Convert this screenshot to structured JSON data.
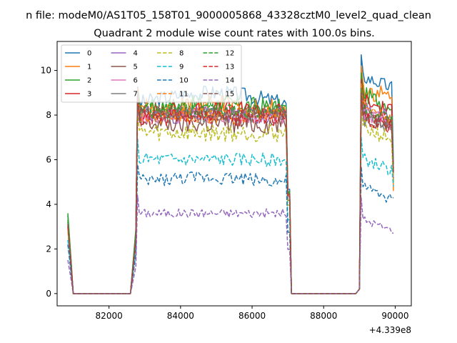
{
  "chart_data": {
    "type": "line",
    "suptitle": "n file: modeM0/AS1T05_158T01_9000005868_43328cztM0_level2_quad_clean",
    "title": "Quadrant 2 module wise count rates with 100.0s bins.",
    "x_offset_label": "+4.339e8",
    "xlim": [
      80550,
      90450
    ],
    "ylim": [
      -0.55,
      11.3
    ],
    "xticks": [
      82000,
      84000,
      86000,
      88000,
      90000
    ],
    "yticks": [
      0,
      2,
      4,
      6,
      8,
      10
    ],
    "legend_position": "upper left",
    "legend_columns": 4,
    "grid": false,
    "gti_segments": [
      [
        80850,
        82650
      ],
      [
        82750,
        87050
      ],
      [
        87100,
        88950
      ],
      [
        89000,
        89950
      ]
    ],
    "series": [
      {
        "name": "0",
        "color": "#1f77b4",
        "dash": "solid",
        "level": 8.5,
        "first": 3.5,
        "noise": 0.35,
        "drift": 0.5,
        "peak2": 10.7,
        "end": 5.8
      },
      {
        "name": "1",
        "color": "#ff7f0e",
        "dash": "solid",
        "level": 8.2,
        "first": 3.3,
        "noise": 0.5,
        "drift": 0.2,
        "peak2": 10.2,
        "end": 4.6
      },
      {
        "name": "2",
        "color": "#2ca02c",
        "dash": "solid",
        "level": 8.3,
        "first": 3.6,
        "noise": 0.4,
        "drift": 0.2,
        "peak2": 9.9,
        "end": 5.0
      },
      {
        "name": "3",
        "color": "#d62728",
        "dash": "solid",
        "level": 8.1,
        "first": 3.2,
        "noise": 0.45,
        "drift": 0.1,
        "peak2": 9.6,
        "end": 5.1
      },
      {
        "name": "4",
        "color": "#9467bd",
        "dash": "solid",
        "level": 8.0,
        "first": 3.0,
        "noise": 0.4,
        "drift": 0.0,
        "peak2": 9.3,
        "end": 5.3
      },
      {
        "name": "5",
        "color": "#8c564b",
        "dash": "solid",
        "level": 7.6,
        "first": 3.0,
        "noise": 0.45,
        "drift": 0.0,
        "peak2": 9.0,
        "end": 5.6
      },
      {
        "name": "6",
        "color": "#e377c2",
        "dash": "solid",
        "level": 7.9,
        "first": 3.1,
        "noise": 0.35,
        "drift": 0.1,
        "peak2": 9.1,
        "end": 5.2
      },
      {
        "name": "7",
        "color": "#7f7f7f",
        "dash": "solid",
        "level": 8.0,
        "first": 3.2,
        "noise": 0.35,
        "drift": 0.0,
        "peak2": 8.8,
        "end": 5.4
      },
      {
        "name": "8",
        "color": "#bcbd22",
        "dash": "dashed",
        "level": 7.2,
        "first": 2.8,
        "noise": 0.4,
        "drift": 0.0,
        "peak2": 8.4,
        "end": 5.0
      },
      {
        "name": "9",
        "color": "#17becf",
        "dash": "dashed",
        "level": 6.0,
        "first": 2.4,
        "noise": 0.3,
        "drift": 0.0,
        "peak2": 7.0,
        "end": 4.8
      },
      {
        "name": "10",
        "color": "#1f77b4",
        "dash": "dashed",
        "level": 5.0,
        "first": 2.2,
        "noise": 0.3,
        "drift": 0.2,
        "peak2": 5.7,
        "end": 4.3
      },
      {
        "name": "11",
        "color": "#ff7f0e",
        "dash": "dashed",
        "level": 8.0,
        "first": 3.1,
        "noise": 0.4,
        "drift": 0.0,
        "peak2": 9.4,
        "end": 5.5
      },
      {
        "name": "12",
        "color": "#2ca02c",
        "dash": "dashed",
        "level": 8.2,
        "first": 3.3,
        "noise": 0.35,
        "drift": 0.0,
        "peak2": 9.2,
        "end": 5.6
      },
      {
        "name": "13",
        "color": "#d62728",
        "dash": "dashed",
        "level": 7.9,
        "first": 3.0,
        "noise": 0.4,
        "drift": 0.0,
        "peak2": 8.9,
        "end": 5.5
      },
      {
        "name": "14",
        "color": "#9467bd",
        "dash": "dashed",
        "level": 3.6,
        "first": 1.5,
        "noise": 0.2,
        "drift": 0.0,
        "peak2": 4.3,
        "end": 2.7
      },
      {
        "name": "15",
        "color": "#8c564b",
        "dash": "dashed",
        "level": 8.1,
        "first": 3.1,
        "noise": 0.35,
        "drift": 0.0,
        "peak2": 9.0,
        "end": 5.4
      }
    ]
  }
}
